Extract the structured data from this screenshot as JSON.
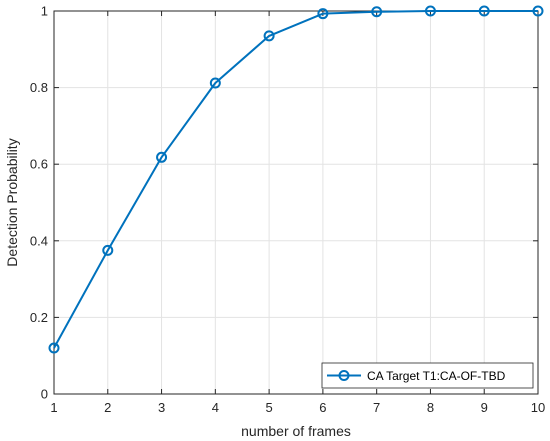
{
  "chart_data": {
    "type": "line",
    "title": "",
    "xlabel": "number of frames",
    "ylabel": "Detection Probability",
    "xlim": [
      1,
      10
    ],
    "ylim": [
      0,
      1
    ],
    "xticks": [
      "1",
      "2",
      "3",
      "4",
      "5",
      "6",
      "7",
      "8",
      "9",
      "10"
    ],
    "yticks": [
      "0",
      "0.2",
      "0.4",
      "0.6",
      "0.8",
      "1"
    ],
    "grid": true,
    "legend_position": "bottom-right",
    "series": [
      {
        "name": "CA Target T1:CA-OF-TBD",
        "color": "#0072BD",
        "marker": "circle",
        "x": [
          1,
          2,
          3,
          4,
          5,
          6,
          7,
          8,
          9,
          10
        ],
        "y": [
          0.12,
          0.375,
          0.618,
          0.812,
          0.935,
          0.993,
          0.998,
          1.0,
          1.0,
          1.0
        ]
      }
    ]
  }
}
